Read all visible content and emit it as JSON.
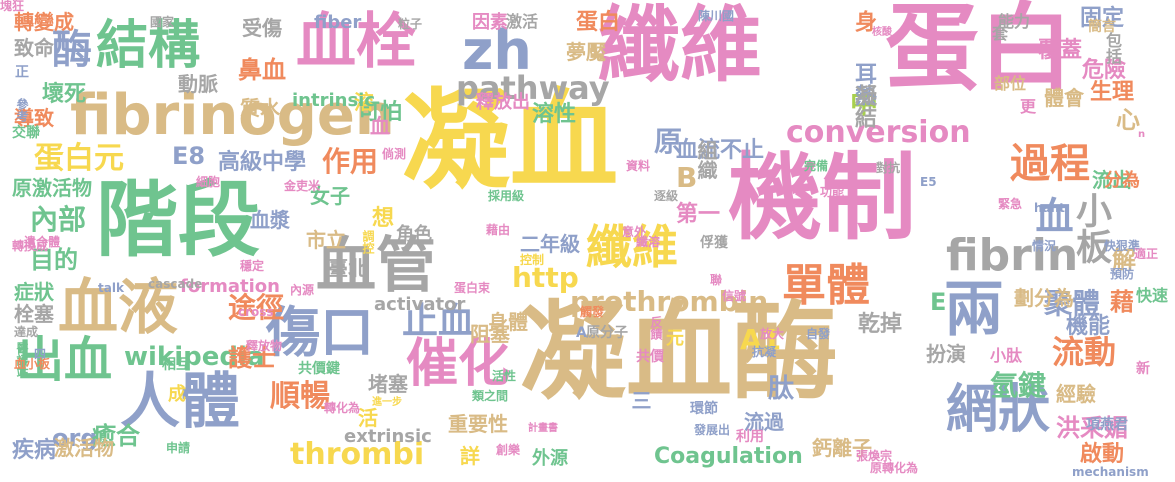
{
  "palette": {
    "yellow": "#f7d84f",
    "pink": "#e58ac2",
    "tan": "#d9bb86",
    "slate": "#8fa0c9",
    "green": "#6fc48f",
    "orange": "#f08a5d",
    "lime": "#a8d04e",
    "gray": "#a6a6a6"
  },
  "words": [
    {
      "text": "纖維",
      "color": "pink"
    },
    {
      "text": "蛋白",
      "color": "pink"
    },
    {
      "text": "凝血",
      "color": "yellow"
    },
    {
      "text": "機制",
      "color": "pink"
    },
    {
      "text": "凝血酶",
      "color": "tan"
    },
    {
      "text": "階段",
      "color": "green"
    },
    {
      "text": "血栓",
      "color": "pink"
    },
    {
      "text": "zh",
      "color": "slate"
    },
    {
      "text": "fibrinogen",
      "color": "tan"
    },
    {
      "text": "結構",
      "color": "green"
    },
    {
      "text": "血管",
      "color": "gray"
    },
    {
      "text": "血液",
      "color": "tan"
    },
    {
      "text": "傷口",
      "color": "slate"
    },
    {
      "text": "人體",
      "color": "slate"
    },
    {
      "text": "出血",
      "color": "green"
    },
    {
      "text": "催化",
      "color": "pink"
    },
    {
      "text": "兩",
      "color": "slate"
    },
    {
      "text": "網狀",
      "color": "slate"
    },
    {
      "text": "單體",
      "color": "orange"
    },
    {
      "text": "纖維",
      "color": "yellow"
    },
    {
      "text": "fibrin",
      "color": "gray"
    },
    {
      "text": "過程",
      "color": "orange"
    },
    {
      "text": "酶",
      "color": "slate"
    },
    {
      "text": "pathway",
      "color": "gray"
    },
    {
      "text": "conversion",
      "color": "pink"
    },
    {
      "text": "prothrombin",
      "color": "tan"
    },
    {
      "text": "thrombi",
      "color": "yellow"
    },
    {
      "text": "止血",
      "color": "slate"
    },
    {
      "text": "順暢",
      "color": "orange"
    },
    {
      "text": "wikipedia",
      "color": "green"
    },
    {
      "text": "蛋白元",
      "color": "yellow"
    },
    {
      "text": "小板",
      "color": "gray"
    },
    {
      "text": "血",
      "color": "slate"
    },
    {
      "text": "流動",
      "color": "orange"
    },
    {
      "text": "氫鍵",
      "color": "green"
    },
    {
      "text": "聚體",
      "color": "slate"
    },
    {
      "text": "內部",
      "color": "green"
    },
    {
      "text": "作用",
      "color": "orange"
    },
    {
      "text": "目的",
      "color": "green"
    },
    {
      "text": "途徑",
      "color": "orange"
    },
    {
      "text": "http",
      "color": "yellow"
    },
    {
      "text": "中",
      "color": "lime"
    },
    {
      "text": "A1",
      "color": "yellow"
    },
    {
      "text": "原",
      "color": "slate"
    },
    {
      "text": "E8",
      "color": "slate"
    },
    {
      "text": "org",
      "color": "slate"
    },
    {
      "text": "癒合",
      "color": "green"
    },
    {
      "text": "肽",
      "color": "slate"
    },
    {
      "text": "洪采媚",
      "color": "pink"
    },
    {
      "text": "Coagulation",
      "color": "green"
    },
    {
      "text": "可怕",
      "color": "green"
    },
    {
      "text": "溶性",
      "color": "green"
    },
    {
      "text": "溶",
      "color": "yellow"
    },
    {
      "text": "血流不止",
      "color": "slate"
    },
    {
      "text": "乾掉",
      "color": "gray"
    },
    {
      "text": "機能",
      "color": "slate"
    },
    {
      "text": "經驗",
      "color": "tan"
    },
    {
      "text": "啟動",
      "color": "orange"
    },
    {
      "text": "護士",
      "color": "orange"
    },
    {
      "text": "固定",
      "color": "slate"
    },
    {
      "text": "危險",
      "color": "pink"
    },
    {
      "text": "生理",
      "color": "orange"
    },
    {
      "text": "流出",
      "color": "green"
    },
    {
      "text": "體會",
      "color": "tan"
    },
    {
      "text": "覆蓋",
      "color": "pink"
    },
    {
      "text": "鼻血",
      "color": "orange"
    },
    {
      "text": "受傷",
      "color": "gray"
    },
    {
      "text": "質水",
      "color": "tan"
    },
    {
      "text": "動脈",
      "color": "gray"
    },
    {
      "text": "壞死",
      "color": "green"
    },
    {
      "text": "導致",
      "color": "orange"
    },
    {
      "text": "致命",
      "color": "gray"
    },
    {
      "text": "轉變成",
      "color": "orange"
    },
    {
      "text": "高級中學",
      "color": "slate"
    },
    {
      "text": "女子",
      "color": "green"
    },
    {
      "text": "血漿",
      "color": "slate"
    },
    {
      "text": "第一",
      "color": "pink"
    },
    {
      "text": "二年級",
      "color": "slate"
    },
    {
      "text": "市立",
      "color": "tan"
    },
    {
      "text": "臺北",
      "color": "gray"
    },
    {
      "text": "身體",
      "color": "tan"
    },
    {
      "text": "堵塞",
      "color": "gray"
    },
    {
      "text": "扮演",
      "color": "gray"
    },
    {
      "text": "重要性",
      "color": "tan"
    },
    {
      "text": "流過",
      "color": "slate"
    },
    {
      "text": "鈣離子",
      "color": "tan"
    },
    {
      "text": "疾病",
      "color": "slate"
    },
    {
      "text": "激活物",
      "color": "tan"
    },
    {
      "text": "症狀",
      "color": "green"
    },
    {
      "text": "栓塞",
      "color": "gray"
    },
    {
      "text": "原激活物",
      "color": "green"
    },
    {
      "text": "E",
      "color": "green"
    },
    {
      "text": "B",
      "color": "tan"
    },
    {
      "text": "夢魘",
      "color": "tan"
    },
    {
      "text": "蛋白",
      "color": "orange"
    },
    {
      "text": "身",
      "color": "orange"
    },
    {
      "text": "耳熱",
      "color": "slate"
    },
    {
      "text": "凝結",
      "color": "gray"
    },
    {
      "text": "組織",
      "color": "gray"
    },
    {
      "text": "藉",
      "color": "orange"
    },
    {
      "text": "解",
      "color": "tan"
    },
    {
      "text": "劃分為",
      "color": "tan"
    },
    {
      "text": "心",
      "color": "tan"
    },
    {
      "text": "分為",
      "color": "orange"
    },
    {
      "text": "釋放出",
      "color": "pink"
    },
    {
      "text": "角色",
      "color": "gray"
    },
    {
      "text": "想",
      "color": "yellow"
    },
    {
      "text": "血",
      "color": "pink"
    },
    {
      "text": "activator",
      "color": "gray"
    },
    {
      "text": "formation",
      "color": "pink"
    },
    {
      "text": "extrinsic",
      "color": "gray"
    },
    {
      "text": "intrinsic",
      "color": "green"
    },
    {
      "text": "fiber",
      "color": "slate"
    },
    {
      "text": "阻塞",
      "color": "tan"
    },
    {
      "text": "元",
      "color": "yellow"
    },
    {
      "text": "三",
      "color": "slate"
    },
    {
      "text": "詳",
      "color": "yellow"
    },
    {
      "text": "活",
      "color": "yellow"
    },
    {
      "text": "外源",
      "color": "green"
    },
    {
      "text": "成",
      "color": "yellow"
    },
    {
      "text": "因素",
      "color": "pink"
    },
    {
      "text": "激活",
      "color": "gray"
    },
    {
      "text": "能力",
      "color": "gray"
    },
    {
      "text": "簡言",
      "color": "tan"
    },
    {
      "text": "包括",
      "color": "gray"
    },
    {
      "text": "套",
      "color": "gray"
    },
    {
      "text": "部位",
      "color": "tan"
    },
    {
      "text": "更",
      "color": "pink"
    },
    {
      "text": "小肽",
      "color": "pink"
    },
    {
      "text": "快速",
      "color": "green"
    },
    {
      "text": "交聯",
      "color": "green"
    },
    {
      "text": "參考",
      "color": "slate"
    },
    {
      "text": "正",
      "color": "slate"
    },
    {
      "text": "國家",
      "color": "gray"
    },
    {
      "text": "粒子",
      "color": "gray"
    },
    {
      "text": "陳川國",
      "color": "slate"
    },
    {
      "text": "細胞",
      "color": "pink"
    },
    {
      "text": "倘測",
      "color": "pink"
    },
    {
      "text": "轉換成",
      "color": "pink"
    },
    {
      "text": "遺合體",
      "color": "pink"
    },
    {
      "text": "金吏米",
      "color": "pink"
    },
    {
      "text": "採用級",
      "color": "green"
    },
    {
      "text": "調控",
      "color": "yellow"
    },
    {
      "text": "藉由",
      "color": "pink"
    },
    {
      "text": "控制",
      "color": "yellow"
    },
    {
      "text": "蛋白束",
      "color": "pink"
    },
    {
      "text": "內源",
      "color": "pink"
    },
    {
      "text": "穩定",
      "color": "pink"
    },
    {
      "text": "cascade",
      "color": "gray"
    },
    {
      "text": "cross",
      "color": "pink"
    },
    {
      "text": "talk",
      "color": "slate"
    },
    {
      "text": "達成",
      "color": "gray"
    },
    {
      "text": "醫護站",
      "color": "green"
    },
    {
      "text": "四",
      "color": "slate"
    },
    {
      "text": "血小板",
      "color": "orange"
    },
    {
      "text": "相互",
      "color": "green"
    },
    {
      "text": "釋放物",
      "color": "pink"
    },
    {
      "text": "共價鍵",
      "color": "green"
    },
    {
      "text": "轉化為",
      "color": "pink"
    },
    {
      "text": "進一步",
      "color": "yellow"
    },
    {
      "text": "活性",
      "color": "green"
    },
    {
      "text": "類之間",
      "color": "green"
    },
    {
      "text": "計畫書",
      "color": "pink"
    },
    {
      "text": "創樂",
      "color": "pink"
    },
    {
      "text": "申請",
      "color": "green"
    },
    {
      "text": "資料",
      "color": "pink"
    },
    {
      "text": "逐級",
      "color": "gray"
    },
    {
      "text": "纖溶",
      "color": "pink"
    },
    {
      "text": "觸發",
      "color": "orange"
    },
    {
      "text": "意外",
      "color": "pink"
    },
    {
      "text": "俘獲",
      "color": "gray"
    },
    {
      "text": "聯",
      "color": "pink"
    },
    {
      "text": "信號",
      "color": "pink"
    },
    {
      "text": "原分子",
      "color": "gray"
    },
    {
      "text": "反饋",
      "color": "pink"
    },
    {
      "text": "共價",
      "color": "pink"
    },
    {
      "text": "環節",
      "color": "slate"
    },
    {
      "text": "發展出",
      "color": "slate"
    },
    {
      "text": "放大",
      "color": "pink"
    },
    {
      "text": "抗凝",
      "color": "slate"
    },
    {
      "text": "自發",
      "color": "slate"
    },
    {
      "text": "利用",
      "color": "pink"
    },
    {
      "text": "張煥宗",
      "color": "pink"
    },
    {
      "text": "原轉化為",
      "color": "pink"
    },
    {
      "text": "mechanism",
      "color": "slate"
    },
    {
      "text": "項燕君",
      "color": "slate"
    },
    {
      "text": "完備",
      "color": "green"
    },
    {
      "text": "對抗",
      "color": "gray"
    },
    {
      "text": "功能",
      "color": "pink"
    },
    {
      "text": "E5",
      "color": "slate"
    },
    {
      "text": "hant",
      "color": "slate"
    },
    {
      "text": "情況",
      "color": "slate"
    },
    {
      "text": "快狠準",
      "color": "slate"
    },
    {
      "text": "預防",
      "color": "slate"
    },
    {
      "text": "適正",
      "color": "pink"
    },
    {
      "text": "緊急",
      "color": "pink"
    },
    {
      "text": "n",
      "color": "pink"
    },
    {
      "text": "核酸",
      "color": "pink"
    },
    {
      "text": "新",
      "color": "pink"
    },
    {
      "text": "A",
      "color": "slate"
    },
    {
      "text": "塊狂",
      "color": "pink"
    }
  ]
}
